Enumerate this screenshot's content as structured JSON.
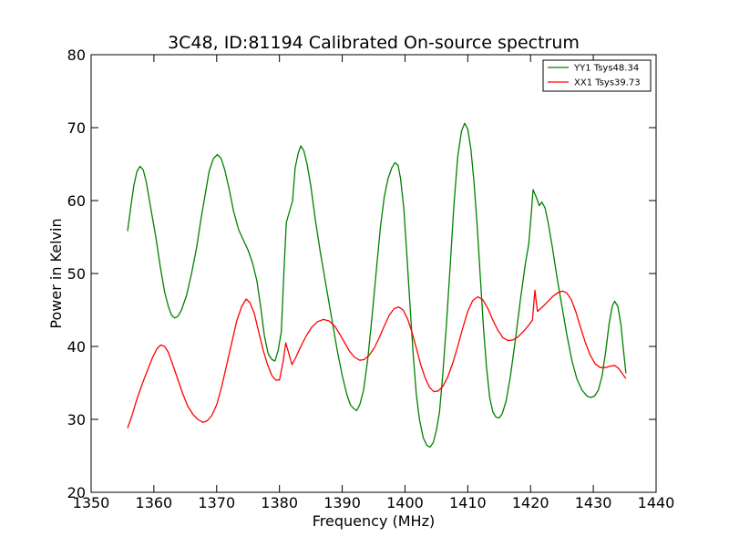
{
  "chart_data": {
    "type": "line",
    "title": "3C48, ID:81194 Calibrated On-source spectrum",
    "xlabel": "Frequency (MHz)",
    "ylabel": "Power in Kelvin",
    "xlim": [
      1350,
      1440
    ],
    "ylim": [
      20,
      80
    ],
    "xticks": [
      1350,
      1360,
      1370,
      1380,
      1390,
      1400,
      1410,
      1420,
      1430,
      1440
    ],
    "yticks": [
      20,
      30,
      40,
      50,
      60,
      70,
      80
    ],
    "grid": false,
    "legend_position": "top-right",
    "series": [
      {
        "name": "YY1 Tsys48.34",
        "color": "#008000",
        "points": [
          [
            1355.8,
            55.8
          ],
          [
            1356.3,
            59.0
          ],
          [
            1356.8,
            62.0
          ],
          [
            1357.3,
            64.0
          ],
          [
            1357.8,
            64.7
          ],
          [
            1358.3,
            64.2
          ],
          [
            1358.8,
            62.5
          ],
          [
            1359.5,
            59.0
          ],
          [
            1360.3,
            55.0
          ],
          [
            1361.0,
            51.0
          ],
          [
            1361.7,
            47.5
          ],
          [
            1362.3,
            45.5
          ],
          [
            1362.8,
            44.3
          ],
          [
            1363.3,
            43.9
          ],
          [
            1363.8,
            44.1
          ],
          [
            1364.4,
            45.0
          ],
          [
            1365.2,
            47.0
          ],
          [
            1366.0,
            50.0
          ],
          [
            1366.8,
            53.5
          ],
          [
            1367.5,
            57.5
          ],
          [
            1368.2,
            61.0
          ],
          [
            1368.8,
            64.0
          ],
          [
            1369.5,
            65.8
          ],
          [
            1370.1,
            66.3
          ],
          [
            1370.7,
            65.8
          ],
          [
            1371.3,
            64.2
          ],
          [
            1372.0,
            61.5
          ],
          [
            1372.7,
            58.5
          ],
          [
            1373.5,
            56.0
          ],
          [
            1374.3,
            54.5
          ],
          [
            1375.0,
            53.2
          ],
          [
            1375.7,
            51.5
          ],
          [
            1376.4,
            49.0
          ],
          [
            1377.0,
            45.5
          ],
          [
            1377.6,
            41.5
          ],
          [
            1378.2,
            39.0
          ],
          [
            1378.8,
            38.2
          ],
          [
            1379.3,
            38.0
          ],
          [
            1379.8,
            39.5
          ],
          [
            1380.3,
            42.0
          ],
          [
            1380.7,
            50.0
          ],
          [
            1381.1,
            57.0
          ],
          [
            1381.6,
            58.5
          ],
          [
            1382.1,
            60.0
          ],
          [
            1382.5,
            64.5
          ],
          [
            1383.0,
            66.5
          ],
          [
            1383.4,
            67.5
          ],
          [
            1383.9,
            66.8
          ],
          [
            1384.4,
            65.0
          ],
          [
            1385.0,
            62.0
          ],
          [
            1385.7,
            57.5
          ],
          [
            1386.5,
            53.0
          ],
          [
            1387.4,
            48.5
          ],
          [
            1388.3,
            44.0
          ],
          [
            1389.2,
            39.5
          ],
          [
            1390.0,
            36.0
          ],
          [
            1390.7,
            33.5
          ],
          [
            1391.3,
            32.0
          ],
          [
            1391.8,
            31.5
          ],
          [
            1392.3,
            31.2
          ],
          [
            1392.8,
            32.0
          ],
          [
            1393.4,
            34.0
          ],
          [
            1394.1,
            38.5
          ],
          [
            1394.8,
            44.5
          ],
          [
            1395.5,
            51.0
          ],
          [
            1396.1,
            56.5
          ],
          [
            1396.7,
            60.5
          ],
          [
            1397.3,
            63.0
          ],
          [
            1397.9,
            64.5
          ],
          [
            1398.4,
            65.2
          ],
          [
            1398.9,
            64.8
          ],
          [
            1399.3,
            63.0
          ],
          [
            1399.8,
            59.0
          ],
          [
            1400.3,
            52.5
          ],
          [
            1400.8,
            45.5
          ],
          [
            1401.3,
            39.0
          ],
          [
            1401.8,
            33.5
          ],
          [
            1402.3,
            30.0
          ],
          [
            1402.9,
            27.5
          ],
          [
            1403.5,
            26.4
          ],
          [
            1404.0,
            26.2
          ],
          [
            1404.5,
            26.8
          ],
          [
            1405.0,
            28.5
          ],
          [
            1405.5,
            31.0
          ],
          [
            1406.0,
            36.0
          ],
          [
            1406.6,
            43.0
          ],
          [
            1407.2,
            51.0
          ],
          [
            1407.8,
            59.5
          ],
          [
            1408.4,
            66.0
          ],
          [
            1409.0,
            69.5
          ],
          [
            1409.5,
            70.6
          ],
          [
            1410.0,
            69.8
          ],
          [
            1410.5,
            67.0
          ],
          [
            1411.0,
            62.5
          ],
          [
            1411.5,
            56.5
          ],
          [
            1412.0,
            49.5
          ],
          [
            1412.5,
            42.5
          ],
          [
            1413.0,
            37.0
          ],
          [
            1413.5,
            33.0
          ],
          [
            1414.0,
            31.0
          ],
          [
            1414.5,
            30.3
          ],
          [
            1415.0,
            30.2
          ],
          [
            1415.5,
            30.8
          ],
          [
            1416.1,
            32.5
          ],
          [
            1416.8,
            36.0
          ],
          [
            1417.6,
            41.0
          ],
          [
            1418.4,
            46.5
          ],
          [
            1419.2,
            51.5
          ],
          [
            1419.7,
            54.0
          ],
          [
            1420.1,
            58.0
          ],
          [
            1420.4,
            61.5
          ],
          [
            1420.9,
            60.5
          ],
          [
            1421.4,
            59.3
          ],
          [
            1421.8,
            59.8
          ],
          [
            1422.3,
            59.0
          ],
          [
            1422.8,
            57.0
          ],
          [
            1423.5,
            53.5
          ],
          [
            1424.2,
            49.5
          ],
          [
            1425.0,
            45.5
          ],
          [
            1425.8,
            41.5
          ],
          [
            1426.6,
            38.0
          ],
          [
            1427.4,
            35.5
          ],
          [
            1428.2,
            34.0
          ],
          [
            1429.0,
            33.2
          ],
          [
            1429.6,
            33.0
          ],
          [
            1430.2,
            33.2
          ],
          [
            1430.8,
            34.0
          ],
          [
            1431.4,
            36.0
          ],
          [
            1432.0,
            39.5
          ],
          [
            1432.5,
            43.0
          ],
          [
            1433.0,
            45.5
          ],
          [
            1433.4,
            46.2
          ],
          [
            1433.9,
            45.5
          ],
          [
            1434.4,
            43.0
          ],
          [
            1434.8,
            39.5
          ],
          [
            1435.2,
            36.3
          ]
        ]
      },
      {
        "name": "XX1 Tsys39.73",
        "color": "#ff0000",
        "points": [
          [
            1355.8,
            28.8
          ],
          [
            1356.5,
            30.5
          ],
          [
            1357.3,
            32.8
          ],
          [
            1358.2,
            35.0
          ],
          [
            1359.1,
            37.0
          ],
          [
            1359.8,
            38.5
          ],
          [
            1360.5,
            39.7
          ],
          [
            1361.1,
            40.2
          ],
          [
            1361.7,
            40.0
          ],
          [
            1362.3,
            39.2
          ],
          [
            1363.0,
            37.5
          ],
          [
            1363.8,
            35.5
          ],
          [
            1364.6,
            33.5
          ],
          [
            1365.4,
            31.8
          ],
          [
            1366.2,
            30.7
          ],
          [
            1367.0,
            30.0
          ],
          [
            1367.8,
            29.6
          ],
          [
            1368.5,
            29.8
          ],
          [
            1369.2,
            30.5
          ],
          [
            1370.0,
            32.0
          ],
          [
            1370.8,
            34.5
          ],
          [
            1371.6,
            37.5
          ],
          [
            1372.4,
            40.5
          ],
          [
            1373.2,
            43.5
          ],
          [
            1374.0,
            45.5
          ],
          [
            1374.7,
            46.5
          ],
          [
            1375.3,
            46.0
          ],
          [
            1376.0,
            44.5
          ],
          [
            1376.7,
            42.0
          ],
          [
            1377.4,
            39.5
          ],
          [
            1378.1,
            37.5
          ],
          [
            1378.8,
            36.0
          ],
          [
            1379.4,
            35.4
          ],
          [
            1380.0,
            35.4
          ],
          [
            1380.6,
            38.0
          ],
          [
            1381.0,
            40.5
          ],
          [
            1381.5,
            39.0
          ],
          [
            1382.0,
            37.5
          ],
          [
            1382.6,
            38.5
          ],
          [
            1383.4,
            40.0
          ],
          [
            1384.3,
            41.5
          ],
          [
            1385.2,
            42.7
          ],
          [
            1386.1,
            43.4
          ],
          [
            1387.0,
            43.7
          ],
          [
            1387.9,
            43.5
          ],
          [
            1388.8,
            42.8
          ],
          [
            1389.6,
            41.7
          ],
          [
            1390.4,
            40.5
          ],
          [
            1391.2,
            39.3
          ],
          [
            1392.0,
            38.5
          ],
          [
            1392.8,
            38.1
          ],
          [
            1393.5,
            38.2
          ],
          [
            1394.3,
            38.8
          ],
          [
            1395.1,
            39.8
          ],
          [
            1395.9,
            41.2
          ],
          [
            1396.7,
            42.8
          ],
          [
            1397.5,
            44.3
          ],
          [
            1398.3,
            45.2
          ],
          [
            1399.0,
            45.4
          ],
          [
            1399.7,
            45.0
          ],
          [
            1400.4,
            43.8
          ],
          [
            1401.1,
            42.0
          ],
          [
            1401.8,
            39.8
          ],
          [
            1402.5,
            37.5
          ],
          [
            1403.2,
            35.7
          ],
          [
            1403.9,
            34.4
          ],
          [
            1404.6,
            33.8
          ],
          [
            1405.3,
            33.9
          ],
          [
            1406.0,
            34.5
          ],
          [
            1406.8,
            35.8
          ],
          [
            1407.6,
            37.7
          ],
          [
            1408.4,
            40.0
          ],
          [
            1409.2,
            42.5
          ],
          [
            1410.0,
            44.8
          ],
          [
            1410.8,
            46.3
          ],
          [
            1411.6,
            46.8
          ],
          [
            1412.4,
            46.4
          ],
          [
            1413.2,
            45.2
          ],
          [
            1414.0,
            43.6
          ],
          [
            1414.8,
            42.2
          ],
          [
            1415.6,
            41.2
          ],
          [
            1416.4,
            40.8
          ],
          [
            1417.2,
            40.9
          ],
          [
            1418.0,
            41.3
          ],
          [
            1418.8,
            42.0
          ],
          [
            1419.6,
            42.8
          ],
          [
            1420.3,
            43.6
          ],
          [
            1420.7,
            47.7
          ],
          [
            1421.1,
            44.8
          ],
          [
            1422.0,
            45.5
          ],
          [
            1422.8,
            46.2
          ],
          [
            1423.6,
            46.9
          ],
          [
            1424.4,
            47.4
          ],
          [
            1425.1,
            47.6
          ],
          [
            1425.8,
            47.3
          ],
          [
            1426.5,
            46.4
          ],
          [
            1427.2,
            44.8
          ],
          [
            1427.9,
            42.8
          ],
          [
            1428.7,
            40.6
          ],
          [
            1429.5,
            38.8
          ],
          [
            1430.3,
            37.6
          ],
          [
            1431.1,
            37.1
          ],
          [
            1431.9,
            37.1
          ],
          [
            1432.7,
            37.3
          ],
          [
            1433.4,
            37.4
          ],
          [
            1434.0,
            37.0
          ],
          [
            1434.6,
            36.3
          ],
          [
            1435.2,
            35.6
          ]
        ]
      }
    ]
  }
}
